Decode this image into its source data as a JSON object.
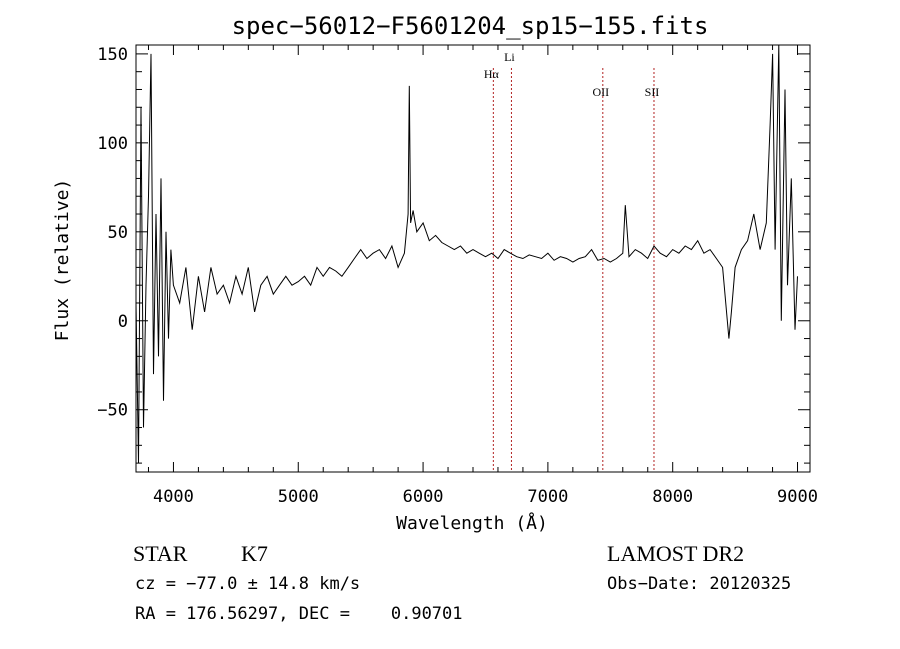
{
  "chart_data": {
    "type": "line",
    "title": "spec−56012−F5601204_sp15−155.fits",
    "xlabel": "Wavelength (Å)",
    "ylabel": "Flux (relative)",
    "xlim": [
      3700,
      9100
    ],
    "ylim": [
      -85,
      155
    ],
    "xticks": [
      4000,
      5000,
      6000,
      7000,
      8000,
      9000
    ],
    "yticks": [
      -50,
      0,
      50,
      100,
      150
    ],
    "grid": false,
    "line_color": "#000000",
    "marker_color": "#b22222",
    "series": [
      {
        "x": [
          3700,
          3720,
          3740,
          3760,
          3780,
          3800,
          3820,
          3840,
          3860,
          3880,
          3900,
          3920,
          3940,
          3960,
          3980,
          4000,
          4050,
          4100,
          4150,
          4200,
          4250,
          4300,
          4350,
          4400,
          4450,
          4500,
          4550,
          4600,
          4650,
          4700,
          4750,
          4800,
          4850,
          4900,
          4950,
          5000,
          5050,
          5100,
          5150,
          5200,
          5250,
          5300,
          5350,
          5400,
          5450,
          5500,
          5550,
          5600,
          5650,
          5700,
          5750,
          5800,
          5850,
          5880,
          5890,
          5900,
          5920,
          5950,
          6000,
          6050,
          6100,
          6150,
          6200,
          6250,
          6300,
          6350,
          6400,
          6450,
          6500,
          6550,
          6600,
          6650,
          6700,
          6750,
          6800,
          6850,
          6900,
          6950,
          7000,
          7050,
          7100,
          7150,
          7200,
          7250,
          7300,
          7350,
          7400,
          7450,
          7500,
          7550,
          7600,
          7620,
          7650,
          7700,
          7750,
          7800,
          7850,
          7900,
          7950,
          8000,
          8050,
          8100,
          8150,
          8200,
          8250,
          8300,
          8350,
          8400,
          8450,
          8470,
          8500,
          8550,
          8600,
          8650,
          8700,
          8750,
          8780,
          8800,
          8820,
          8850,
          8870,
          8900,
          8920,
          8950,
          8980,
          9000
        ],
        "y": [
          10,
          -80,
          120,
          -60,
          20,
          70,
          150,
          -30,
          60,
          -20,
          80,
          -45,
          50,
          -10,
          40,
          20,
          10,
          30,
          -5,
          25,
          5,
          30,
          15,
          20,
          10,
          25,
          15,
          30,
          5,
          20,
          25,
          15,
          20,
          25,
          20,
          22,
          25,
          20,
          30,
          25,
          30,
          28,
          25,
          30,
          35,
          40,
          35,
          38,
          40,
          35,
          42,
          30,
          38,
          60,
          132,
          55,
          62,
          50,
          55,
          45,
          48,
          44,
          42,
          40,
          42,
          38,
          40,
          38,
          36,
          38,
          35,
          40,
          38,
          36,
          35,
          37,
          36,
          35,
          38,
          34,
          36,
          35,
          33,
          35,
          36,
          40,
          34,
          35,
          33,
          35,
          38,
          65,
          36,
          40,
          38,
          35,
          42,
          38,
          36,
          40,
          38,
          42,
          40,
          45,
          38,
          40,
          35,
          30,
          -10,
          5,
          30,
          40,
          45,
          60,
          40,
          55,
          110,
          150,
          40,
          155,
          0,
          130,
          20,
          80,
          -5,
          25
        ]
      }
    ],
    "lines": [
      {
        "label": "Hα",
        "x": 6563
      },
      {
        "label": "Li",
        "x": 6708
      },
      {
        "label": "OII",
        "x": 7440
      },
      {
        "label": "SII",
        "x": 7850
      }
    ]
  },
  "info": {
    "class_label": "STAR",
    "subclass": "K7",
    "survey": "LAMOST DR2",
    "cz_text": "cz = −77.0 ± 14.8 km/s",
    "obs_date_text": "Obs−Date: 20120325",
    "coords_text": "RA = 176.56297, DEC =    0.90701"
  }
}
